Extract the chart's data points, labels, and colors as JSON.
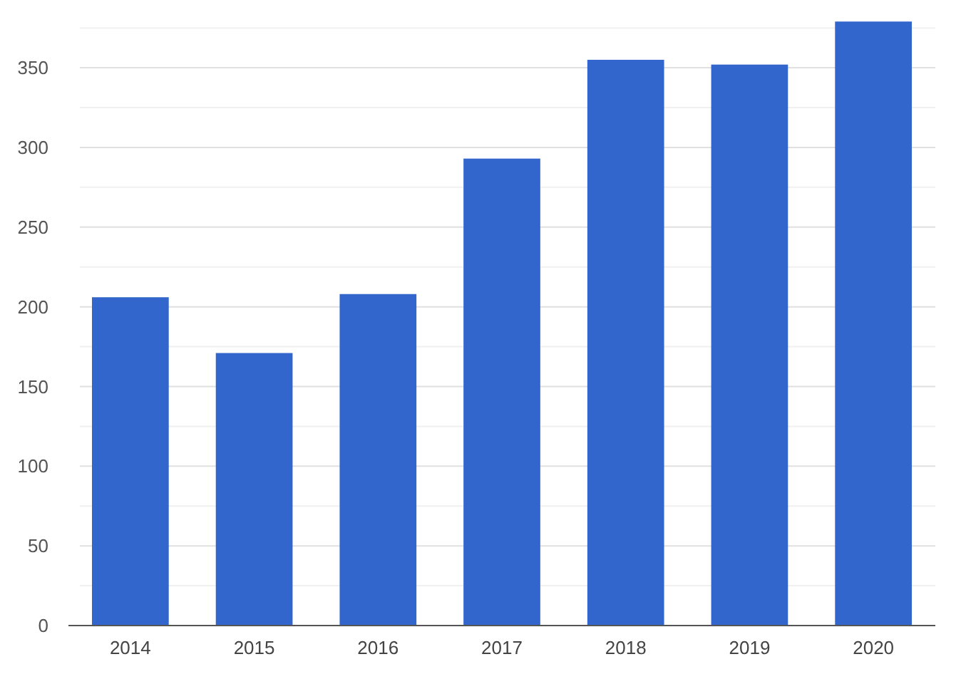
{
  "chart_data": {
    "type": "bar",
    "categories": [
      "2014",
      "2015",
      "2016",
      "2017",
      "2018",
      "2019",
      "2020"
    ],
    "values": [
      206,
      171,
      208,
      293,
      355,
      352,
      379
    ],
    "color": "#3366cc",
    "ylim": [
      0,
      380
    ],
    "yticks": [
      0,
      {
        "value": 25,
        "label": null
      },
      50,
      {
        "value": 75,
        "label": null
      },
      100,
      {
        "value": 125,
        "label": null
      },
      150,
      {
        "value": 175,
        "label": null
      },
      200,
      {
        "value": 225,
        "label": null
      },
      250,
      {
        "value": 275,
        "label": null
      },
      300,
      {
        "value": 325,
        "label": null
      },
      350,
      {
        "value": 375,
        "label": null
      }
    ],
    "grid": "y"
  }
}
